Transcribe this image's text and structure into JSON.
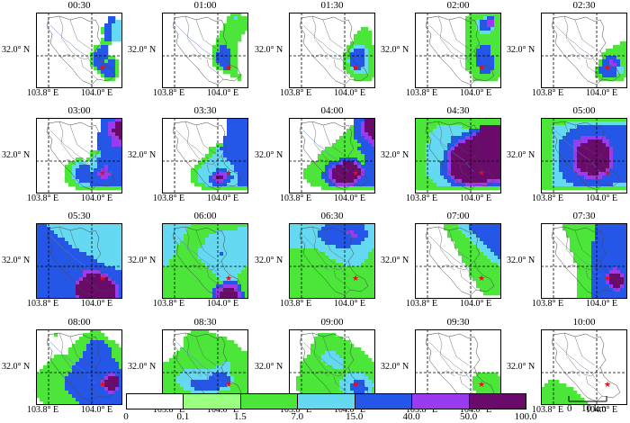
{
  "panels": [
    {
      "time": "00:30",
      "rain": [
        "000000000000000000000000",
        "000000000000000000004400",
        "000000000000000000004433",
        "000000000000000000044333",
        "000000000000000000244333",
        "000000000000000000244333",
        "000000000000000000044333",
        "000000000000000000244333",
        "000000000000000000222000",
        "000000000000000022440000",
        "000000000000000024440000",
        "000000000000000244440000",
        "000000000000000244442200",
        "000000000000000244424420",
        "000000000000000244444420",
        "000000000000000024444420",
        "000000000000000002444420",
        "000000000000000000244420",
        "000000000000000000022200",
        "000000000000000000000000",
        "000000000000000000000000"
      ]
    },
    {
      "time": "01:00",
      "rain": [
        "000000000000000000022200",
        "000000000000000000223222",
        "000000000000000000222222",
        "000000000000000002222222",
        "000000000000000002222222",
        "000000000000000022222220",
        "000000000000000022222200",
        "000000000000000222222200",
        "000000000000000222222000",
        "000000000000002244222000",
        "000000000000002244422000",
        "000000000000002444422000",
        "000000000000002444422000",
        "000000000000002444422000",
        "000000000000002244422000",
        "000000000000000224422000",
        "000000000000000002222000",
        "000000000000000000022200",
        "000000000000000000000200",
        "000000000000000000000000",
        "000000000000000000000000"
      ]
    },
    {
      "time": "01:30",
      "rain": [
        "000000000000000000000000",
        "000000000000000000000000",
        "000000000000000000000000",
        "000000000000000000000000",
        "000000000000000000002200",
        "000000000000000000022220",
        "000000000000000000222220",
        "000000000000000000222220",
        "000000000000000002222220",
        "000000000000000022333222",
        "000000000000000023444322",
        "000000000000000224444322",
        "000000000000000224444322",
        "000000000000000234444322",
        "000000000000000224444322",
        "000000000000000223443322",
        "000000000000000022333322",
        "000000000000000002222222",
        "000000000000000000222220",
        "000000000000000000000000",
        "000000000000000000000000"
      ]
    },
    {
      "time": "02:00",
      "rain": [
        "000000000000000222222222",
        "000000000000002222234422",
        "000000000000002223445522",
        "000000000000002223445522",
        "000000000000002223444322",
        "000000000000002222333222",
        "000000000000002222222222",
        "000000000000002222222222",
        "000000000000002222222222",
        "000000000000002222444222",
        "000000000000002224444222",
        "000000000000002224444222",
        "000000000000002224444422",
        "000000000000002224444422",
        "000000000000002224444422",
        "000000000000002222444422",
        "000000000000000222444222",
        "000000000000000022222222",
        "000000000000000022222220",
        "000000000000000000000000",
        "000000000000000000000000"
      ]
    },
    {
      "time": "02:30",
      "rain": [
        "000000000000000000000000",
        "000000000000000000000000",
        "000000000000000000000000",
        "000000000000000000000000",
        "000000000000000000000000",
        "000000000000000000000000",
        "000000000000000000000000",
        "000000000000000000000000",
        "000000000000000000000022",
        "000000000000000000002222",
        "000000000000000000222222",
        "000000000000000002222222",
        "000000000000000002444222",
        "000000000000000024454422",
        "000000000000000024455422",
        "000000000000000244444332",
        "000000000000000244444332",
        "000000000000000224444222",
        "000000000000000022222220",
        "000000000000000000000000",
        "000000000000000000000000"
      ]
    },
    {
      "time": "03:00",
      "rain": [
        "000000000000000000444455",
        "000000000000000000445566",
        "000000000000000000445566",
        "000000000000000000445666",
        "000000000000000004445566",
        "000000000000000004444556",
        "000000000000000004444555",
        "000000000000000004444555",
        "000000000000000004444444",
        "000000000000000222444444",
        "000000000000000233444444",
        "000000000002202334444444",
        "000000000223330334444444",
        "000000002233444334454444",
        "000000002234444344554444",
        "000000002234444445555444",
        "000000002234444444554444",
        "000000002223444444444444",
        "000000000222333444444444",
        "000000000002222222222222",
        "000000000000000000000000"
      ]
    },
    {
      "time": "03:30",
      "rain": [
        "000000000000000000444444",
        "000000000000000000444444",
        "000000000000000000444444",
        "000000000000000000444444",
        "000000000000000000444444",
        "000000000000000004444444",
        "000000000000000004444444",
        "000000000000000224444444",
        "000000000000022344444444",
        "000000000000022334444444",
        "000000000000223334444444",
        "000000000002233333444444",
        "000000000022333333344444",
        "000000000223333333334444",
        "000000002233333444334444",
        "000000002233334555433444",
        "000000002233345665443444",
        "000000002233344554433444",
        "000000000222334444333444",
        "000000000002222222222222",
        "000000000000000000000000"
      ]
    },
    {
      "time": "04:00",
      "rain": [
        "000000000000000000444666",
        "000000000000000000445666",
        "000000000000000002445666",
        "000000000000000022445666",
        "000000000000000222445566",
        "000000000000002222444556",
        "000000000000022222244455",
        "000000000000222222224445",
        "000000000022222222244444",
        "000000000222222222224444",
        "000000002222222222222444",
        "000000002222224444422444",
        "000000222224445666542444",
        "000002222244566666654444",
        "000022222245666666665444",
        "000022222445666666665444",
        "000022222445666666654444",
        "000002222244566666544444",
        "000000222224455555444444",
        "000000000222222222222222",
        "000000000000000000000000"
      ]
    },
    {
      "time": "04:30",
      "rain": [
        "222222222222222222222222",
        "222222222222222222222222",
        "222222333333322222666666",
        "222223333333333444666666",
        "222233333333344456666666",
        "222233333344445566666666",
        "222233333344556666666666",
        "222333333445666666666666",
        "222333333456666666666666",
        "222333334566666666666666",
        "222333334566666666666666",
        "222333334566666666666666",
        "222333344566666666666666",
        "222333344566666666666666",
        "222333344566666666666666",
        "222333344566666666666666",
        "222233334456666666666666",
        "222223333445566666665555",
        "222222333344445555554444",
        "222222222222222222222222",
        "000000000000000000000000"
      ]
    },
    {
      "time": "05:00",
      "rain": [
        "222222222222222222222222",
        "222222233333333333333333",
        "222333333344444444444444",
        "222333334444444444444444",
        "222333344444444444444444",
        "222333444445555555444444",
        "222334444555566665544444",
        "222334444556666666544444",
        "222334444566666666654444",
        "222334444566666666654444",
        "222334444566666666654444",
        "222334444566666666654444",
        "222334444566666666654444",
        "222334444566666666654444",
        "222334444556666666544444",
        "222333444455566655444444",
        "222333444444555554444444",
        "222333344444444444444444",
        "222333333444444444443333",
        "222222222222222222222222",
        "000000000000000000000000"
      ]
    },
    {
      "time": "05:30",
      "rain": [
        "444333333333333333333333",
        "444433333333333333333333",
        "444443333333333333333333",
        "444444333333333333333333",
        "444444443333333333333333",
        "444444444333333333333333",
        "444444444433333333333333",
        "444444444444333333333333",
        "444444444444443333333333",
        "444444444444444433333333",
        "444444444444444443333333",
        "444444444444444444433333",
        "444444444444444444444433",
        "444444444444455555444444",
        "444444444444456666554444",
        "444444444444566666665444",
        "444444444445666666666544",
        "444444444446666666666654",
        "444444444446666666666654",
        "444444444446666666666654",
        "444444444445666666666654"
      ]
    },
    {
      "time": "06:00",
      "rain": [
        "333333332222222222222222",
        "333333322222222222222333",
        "333333322222222333333333",
        "333333222222233333333333",
        "333333222222333333333333",
        "333332222222333333333333",
        "333322222223333333333333",
        "333322222233333333333333",
        "333322222233333343333333",
        "333222222233333333333333",
        "332222222223333333333333",
        "332222222222333333333333",
        "222222222222233333333332",
        "222222222222223333333322",
        "222222222222222333333222",
        "222222222222222233333222",
        "222222222222222224444222",
        "222222222222222445555422",
        "222222222222224556665422",
        "222222222222224566666542",
        "222222222222224566666542"
      ]
    },
    {
      "time": "06:30",
      "rain": [
        "333333333344444444444333",
        "333333333444444444444333",
        "333333334444444455444433",
        "333333334444444445544433",
        "333333333444444444444333",
        "333333333344444444443333",
        "333333333333344443333333",
        "222222223333333333333332",
        "222222222233333333333322",
        "222222222223333333333322",
        "222222222222233333333222",
        "222222222222222333332222",
        "222222222222222222222222",
        "222222222222222222222222",
        "222222222222222222222222",
        "222222222222222222222222",
        "222222222222222222222222",
        "222222222222222222222222",
        "222222222222222222222222",
        "222222222222222222222222",
        "222222222222222222222222"
      ]
    },
    {
      "time": "07:00",
      "rain": [
        "000000002222333444444444",
        "000000002222333444444444",
        "000000000222233344444444",
        "000000000222223334444444",
        "000000000022222333444444",
        "000000000002222233344444",
        "000000000002222223334444",
        "000000000000222222333444",
        "000000000000222222233344",
        "000000000000022222223334",
        "000000000000022222222333",
        "000000000000002222222223",
        "000000000000000222222222",
        "000000000000000222222222",
        "000000000000000222222222",
        "000000000000000022222222",
        "000000000000000002222222",
        "000000000000000002222222",
        "000000000000000000222222",
        "000000000000000000022222",
        "000000000000000000000000"
      ]
    },
    {
      "time": "07:30",
      "rain": [
        "000000222222222444444444",
        "000000222222222444444444",
        "000000022222222444444444",
        "000000022222222444444444",
        "000000002222222444444444",
        "000000002222224444444444",
        "000000002222224444444444",
        "000000002222224444444444",
        "000000000222224444444444",
        "000000000222224444444444",
        "000000000222224444444444",
        "000000000022224444444444",
        "000000000022224444445444",
        "000000000022224444455544",
        "000000000022224444566654",
        "000000000022224444566664",
        "000000000022224444566664",
        "000000000022224444456654",
        "000000000022224444445544",
        "000000000022224444444444",
        "000000000022224444444444"
      ]
    },
    {
      "time": "08:00",
      "rain": [
        "000000000000000222000000",
        "000002000000022222200000",
        "000000000000222222220000",
        "000000000002222444422200",
        "000000000022224444442220",
        "000000000222224444444222",
        "000000000222244444444222",
        "000002222222244444444222",
        "000022222222444444444422",
        "000222222224444444444442",
        "002222222244444444444442",
        "022222222244444444444444",
        "222222222444444444445544",
        "222222224444444444456664",
        "222222224444444444566664",
        "222222224444444444566664",
        "222222224444444444456654",
        "222222222444444444445544",
        "222222222244444444444444",
        "022222222224444444444444",
        "002222222222444444444444"
      ]
    },
    {
      "time": "08:30",
      "rain": [
        "000000002222200000000000",
        "000000022222222000000000",
        "000000222222222222000000",
        "000000222222222222220000",
        "000000222222222222222000",
        "000002222222222222222200",
        "000022222222222222222222",
        "000222222222222222222222",
        "002222222222222222222222",
        "222222222222222223322222",
        "222222222222222333322222",
        "222222333333333333322222",
        "222223333333334444322222",
        "222233333333344444432222",
        "222233334444444444432222",
        "222223334444444444322222",
        "222222333444444433322222",
        "222222223333333322222222",
        "222222222222222222222222",
        "022222222222222222222222",
        "002222222222222222222222"
      ]
    },
    {
      "time": "09:00",
      "rain": [
        "000000000000000000000000",
        "000000002222200000000000",
        "000000022222222000000000",
        "000000022222222220000000",
        "000000222222222222000000",
        "000000222222222222220000",
        "000000222233322222222000",
        "000002222333332222222200",
        "000022222333333222222220",
        "000222222233333222222222",
        "000222222222333222222222",
        "000222222222222222222222",
        "000222222222222233333222",
        "002222222222222333333322",
        "002222222222223333444332",
        "002222222222223334444333",
        "002222222222223334444432",
        "000222222222222333444332",
        "000022222222222233333222",
        "000002222222222222222220",
        "000000222222222222222200"
      ]
    },
    {
      "time": "09:30",
      "rain": [
        "000000000000000000000000",
        "000000000000000000000000",
        "000000000000000000000000",
        "000000000000000000000000",
        "000000000000000000000000",
        "000000000000000000000000",
        "000000000000000000000000",
        "000000000000000000000000",
        "000000000000000000000000",
        "000000000000000000000000",
        "000000000000000000000000",
        "000000000000000000000000",
        "000000000000000002222220",
        "000000000000000022222222",
        "000000000000000022222222",
        "000000000000000022222222",
        "000000000000000022222222",
        "000000000000000002222222",
        "000000000000000000222222",
        "000000000000000000000000",
        "000000000000000000000000"
      ]
    },
    {
      "time": "10:00",
      "rain": [
        "000000000000000000000000",
        "000000000000000000000000",
        "000000000000000000000000",
        "000000000000000000000000",
        "000000000000000000000000",
        "000000000000000000000000",
        "000000000000000000000000",
        "000000000000000000000000",
        "000000000000000000000000",
        "000000000000000000000000",
        "000000000000000000000000",
        "000000000000000000000000",
        "000000000000000000000000",
        "000000000000000000000000",
        "002220000000000000000000",
        "022222200000000000000000",
        "222222222000000000000000",
        "222222222200000000000000",
        "222222222220000000000000",
        "222222222222000000000000",
        "222222222222200000000000"
      ]
    }
  ],
  "lat_label": "32.0° N",
  "lon_labels": [
    "103.8° E",
    "104.0° E"
  ],
  "colorbar": {
    "ticks": [
      "0",
      "0.1",
      "1.5",
      "7.0",
      "15.0",
      "40.0",
      "50.0",
      "100.0"
    ],
    "colors": [
      "#ffffff",
      "#99ff80",
      "#4ce63a",
      "#66d9f2",
      "#2457e8",
      "#9a3bf0",
      "#6a0a6a"
    ]
  },
  "scalebar": {
    "zero": "0",
    "label": "10 km"
  },
  "marker_color": "#e0101a"
}
